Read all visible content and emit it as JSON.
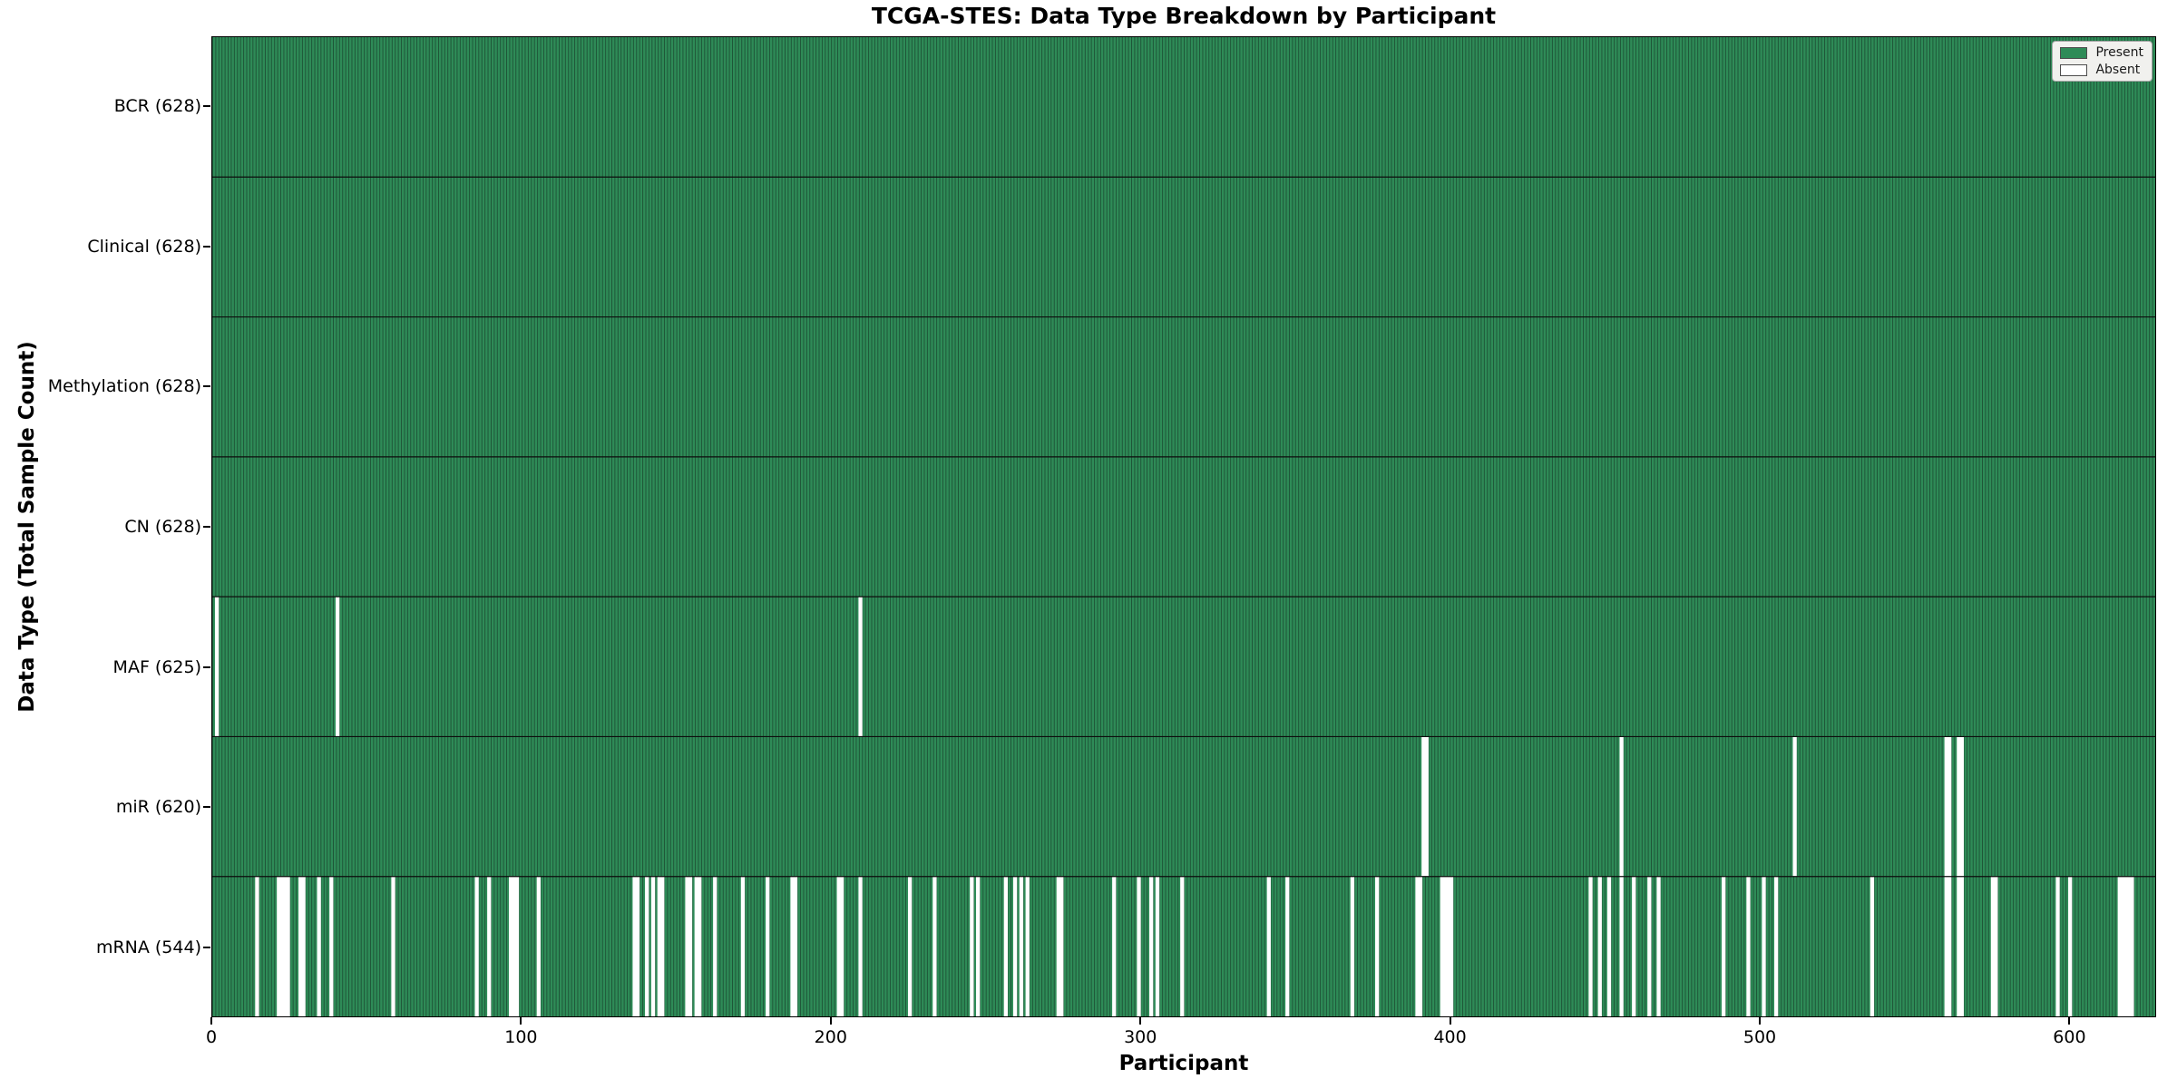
{
  "title": "TCGA-STES: Data Type Breakdown by Participant",
  "xlabel": "Participant",
  "ylabel": "Data Type (Total Sample Count)",
  "legend": {
    "present_label": "Present",
    "absent_label": "Absent"
  },
  "colors": {
    "present": "#2e8b57",
    "absent": "#ffffff",
    "cell_edge": "#1b4a31",
    "row_separator": "#0d0d0d",
    "axis": "#000000",
    "legend_bg": "#f1f1ee"
  },
  "chart_data": {
    "type": "heatmap",
    "title": "TCGA-STES: Data Type Breakdown by Participant",
    "xlabel": "Participant",
    "ylabel": "Data Type (Total Sample Count)",
    "legend_entries": [
      "Present",
      "Absent"
    ],
    "legend_position": "upper right",
    "n_participants": 628,
    "x_ticks": [
      0,
      100,
      200,
      300,
      400,
      500,
      600
    ],
    "rows": [
      {
        "label": "BCR (628)",
        "data_type": "BCR",
        "present_count": 628,
        "absent_participants": []
      },
      {
        "label": "Clinical (628)",
        "data_type": "Clinical",
        "present_count": 628,
        "absent_participants": []
      },
      {
        "label": "Methylation (628)",
        "data_type": "Methylation",
        "present_count": 628,
        "absent_participants": []
      },
      {
        "label": "CN (628)",
        "data_type": "CN",
        "present_count": 628,
        "absent_participants": []
      },
      {
        "label": "MAF (625)",
        "data_type": "MAF",
        "present_count": 625,
        "absent_participants": [
          1,
          40,
          209
        ]
      },
      {
        "label": "miR (620)",
        "data_type": "miR",
        "present_count": 620,
        "absent_participants": [
          391,
          392,
          455,
          511,
          560,
          561,
          564,
          565
        ]
      },
      {
        "label": "mRNA (544)",
        "data_type": "mRNA",
        "present_count": 544,
        "absent_participants": [
          14,
          21,
          22,
          23,
          24,
          28,
          29,
          34,
          38,
          58,
          85,
          89,
          96,
          97,
          98,
          105,
          136,
          137,
          140,
          142,
          144,
          145,
          153,
          154,
          156,
          157,
          162,
          171,
          179,
          187,
          188,
          202,
          203,
          209,
          225,
          233,
          245,
          247,
          256,
          259,
          261,
          263,
          273,
          274,
          291,
          299,
          303,
          305,
          313,
          341,
          347,
          368,
          376,
          389,
          390,
          397,
          398,
          399,
          400,
          445,
          448,
          451,
          455,
          459,
          464,
          467,
          488,
          496,
          501,
          505,
          536,
          560,
          561,
          564,
          565,
          575,
          576,
          596,
          600,
          616,
          617,
          618,
          619,
          620
        ]
      }
    ]
  }
}
